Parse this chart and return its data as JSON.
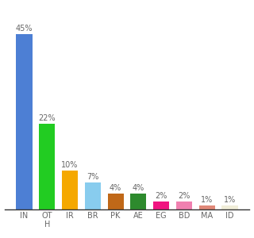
{
  "categories": [
    "IN",
    "OT\nH",
    "IR",
    "BR",
    "PK",
    "AE",
    "EG",
    "BD",
    "MA",
    "ID"
  ],
  "values": [
    45,
    22,
    10,
    7,
    4,
    4,
    2,
    2,
    1,
    1
  ],
  "bar_colors": [
    "#4d7fd4",
    "#22cc22",
    "#f5a800",
    "#88ccee",
    "#c06818",
    "#2d8a2d",
    "#f01480",
    "#f080b0",
    "#e08878",
    "#f0edd8"
  ],
  "ylim": [
    0,
    52
  ],
  "background_color": "#ffffff",
  "label_fontsize": 7,
  "tick_fontsize": 7
}
